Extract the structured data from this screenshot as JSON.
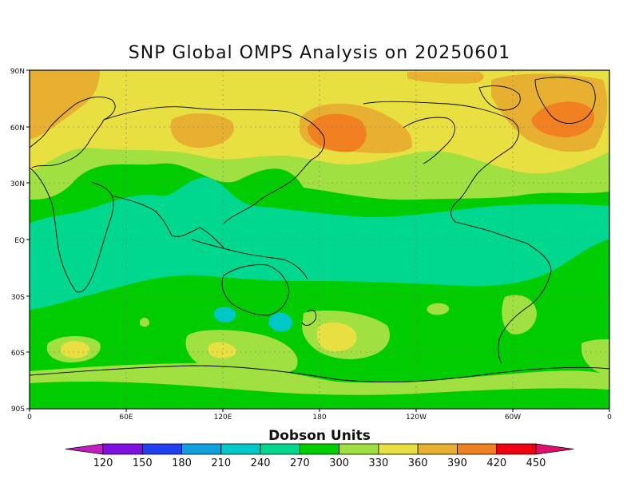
{
  "title": "SNP Global OMPS Analysis on 20250601",
  "lat_labels": [
    "90N",
    "60N",
    "30N",
    "EQ",
    "30S",
    "60S",
    "90S"
  ],
  "lon_labels": [
    "0",
    "60E",
    "120E",
    "180",
    "120W",
    "60W",
    "0"
  ],
  "colorbar": {
    "title": "Dobson Units",
    "ticks": [
      "120",
      "150",
      "180",
      "210",
      "240",
      "270",
      "300",
      "330",
      "360",
      "390",
      "420",
      "450"
    ],
    "colors": [
      "#c020c0",
      "#8010e0",
      "#2040f0",
      "#10a0e0",
      "#00c8c8",
      "#00d890",
      "#00cc00",
      "#a0e040",
      "#e8e040",
      "#e8b030",
      "#f08020",
      "#f00010",
      "#e01070"
    ]
  },
  "bands": {
    "c330": "#a0e040",
    "c300": "#00cc00",
    "c270": "#00d890",
    "c240": "#00c8c8",
    "c360": "#e8e040",
    "c390": "#e8b030",
    "c420": "#f08020"
  }
}
